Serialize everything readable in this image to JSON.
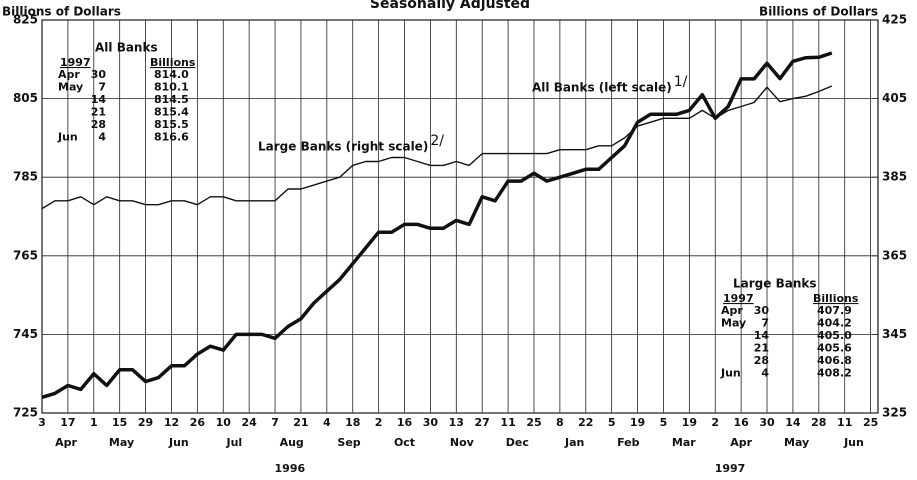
{
  "chart_data": {
    "type": "line",
    "subtitle": "Seasonally Adjusted",
    "ylabel": "Billions of Dollars",
    "y2label": "Billions of Dollars",
    "x": [
      "1996-04-03",
      "1996-04-10",
      "1996-04-17",
      "1996-04-24",
      "1996-05-01",
      "1996-05-08",
      "1996-05-15",
      "1996-05-22",
      "1996-05-29",
      "1996-06-05",
      "1996-06-12",
      "1996-06-19",
      "1996-06-26",
      "1996-07-03",
      "1996-07-10",
      "1996-07-17",
      "1996-07-24",
      "1996-07-31",
      "1996-08-07",
      "1996-08-14",
      "1996-08-21",
      "1996-08-28",
      "1996-09-04",
      "1996-09-11",
      "1996-09-18",
      "1996-09-25",
      "1996-10-02",
      "1996-10-09",
      "1996-10-16",
      "1996-10-23",
      "1996-10-30",
      "1996-11-06",
      "1996-11-13",
      "1996-11-20",
      "1996-11-27",
      "1996-12-04",
      "1996-12-11",
      "1996-12-18",
      "1996-12-25",
      "1997-01-01",
      "1997-01-08",
      "1997-01-15",
      "1997-01-22",
      "1997-01-29",
      "1997-02-05",
      "1997-02-12",
      "1997-02-19",
      "1997-02-26",
      "1997-03-05",
      "1997-03-12",
      "1997-03-19",
      "1997-03-26",
      "1997-04-02",
      "1997-04-09",
      "1997-04-16",
      "1997-04-23",
      "1997-04-30",
      "1997-05-07",
      "1997-05-14",
      "1997-05-21",
      "1997-05-28",
      "1997-06-04"
    ],
    "series": [
      {
        "name": "All Banks (left scale)",
        "note": "1/",
        "color": "#111111",
        "width": 3.5,
        "values": [
          729,
          730,
          732,
          731,
          735,
          732,
          736,
          736,
          733,
          734,
          737,
          737,
          740,
          742,
          741,
          745,
          745,
          745,
          744,
          747,
          749,
          753,
          756,
          759,
          763,
          767,
          771,
          771,
          773,
          773,
          772,
          772,
          774,
          773,
          780,
          779,
          784,
          784,
          786,
          784,
          785,
          786,
          787,
          787,
          790,
          793,
          799,
          801,
          801,
          801,
          802,
          806,
          800,
          803,
          810,
          810,
          814.0,
          810.1,
          814.5,
          815.4,
          815.5,
          816.6
        ]
      },
      {
        "name": "Large Banks (right scale)",
        "note": "2/",
        "color": "#111111",
        "width": 1.4,
        "axis": "y2",
        "values": [
          377,
          379,
          379,
          380,
          378,
          380,
          379,
          379,
          378,
          378,
          379,
          379,
          378,
          380,
          380,
          379,
          379,
          379,
          379,
          382,
          382,
          383,
          384,
          385,
          388,
          389,
          389,
          390,
          390,
          389,
          388,
          388,
          389,
          388,
          391,
          391,
          391,
          391,
          391,
          391,
          392,
          392,
          392,
          393,
          393,
          395,
          398,
          399,
          400,
          400,
          400,
          402,
          400,
          402,
          403,
          404,
          407.9,
          404.2,
          405.0,
          405.6,
          406.8,
          408.2
        ]
      }
    ],
    "xlim": [
      "1996-04-03",
      "1997-06-29"
    ],
    "xticks": [
      {
        "value": "1996-04-03",
        "label": "3"
      },
      {
        "value": "1996-04-17",
        "label": "17"
      },
      {
        "value": "1996-05-01",
        "label": "1"
      },
      {
        "value": "1996-05-15",
        "label": "15"
      },
      {
        "value": "1996-05-29",
        "label": "29"
      },
      {
        "value": "1996-06-12",
        "label": "12"
      },
      {
        "value": "1996-06-26",
        "label": "26"
      },
      {
        "value": "1996-07-10",
        "label": "10"
      },
      {
        "value": "1996-07-24",
        "label": "24"
      },
      {
        "value": "1996-08-07",
        "label": "7"
      },
      {
        "value": "1996-08-21",
        "label": "21"
      },
      {
        "value": "1996-09-04",
        "label": "4"
      },
      {
        "value": "1996-09-18",
        "label": "18"
      },
      {
        "value": "1996-10-02",
        "label": "2"
      },
      {
        "value": "1996-10-16",
        "label": "16"
      },
      {
        "value": "1996-10-30",
        "label": "30"
      },
      {
        "value": "1996-11-13",
        "label": "13"
      },
      {
        "value": "1996-11-27",
        "label": "27"
      },
      {
        "value": "1996-12-11",
        "label": "11"
      },
      {
        "value": "1996-12-25",
        "label": "25"
      },
      {
        "value": "1997-01-08",
        "label": "8"
      },
      {
        "value": "1997-01-22",
        "label": "22"
      },
      {
        "value": "1997-02-05",
        "label": "5"
      },
      {
        "value": "1997-02-19",
        "label": "19"
      },
      {
        "value": "1997-03-05",
        "label": "5"
      },
      {
        "value": "1997-03-19",
        "label": "19"
      },
      {
        "value": "1997-04-02",
        "label": "2"
      },
      {
        "value": "1997-04-16",
        "label": "16"
      },
      {
        "value": "1997-04-30",
        "label": "30"
      },
      {
        "value": "1997-05-14",
        "label": "14"
      },
      {
        "value": "1997-05-28",
        "label": "28"
      },
      {
        "value": "1997-06-11",
        "label": "11"
      },
      {
        "value": "1997-06-25",
        "label": "25"
      }
    ],
    "months": [
      {
        "value": "1996-04-16",
        "label": "Apr"
      },
      {
        "value": "1996-05-16",
        "label": "May"
      },
      {
        "value": "1996-06-16",
        "label": "Jun"
      },
      {
        "value": "1996-07-16",
        "label": "Jul"
      },
      {
        "value": "1996-08-16",
        "label": "Aug"
      },
      {
        "value": "1996-09-16",
        "label": "Sep"
      },
      {
        "value": "1996-10-16",
        "label": "Oct"
      },
      {
        "value": "1996-11-16",
        "label": "Nov"
      },
      {
        "value": "1996-12-16",
        "label": "Dec"
      },
      {
        "value": "1997-01-16",
        "label": "Jan"
      },
      {
        "value": "1997-02-14",
        "label": "Feb"
      },
      {
        "value": "1997-03-16",
        "label": "Mar"
      },
      {
        "value": "1997-04-16",
        "label": "Apr"
      },
      {
        "value": "1997-05-16",
        "label": "May"
      },
      {
        "value": "1997-06-16",
        "label": "Jun"
      }
    ],
    "years": [
      {
        "value": "1996-08-15",
        "label": "1996"
      },
      {
        "value": "1997-04-10",
        "label": "1997"
      }
    ],
    "ylim": [
      725,
      825
    ],
    "yticks": [
      725,
      745,
      765,
      785,
      805,
      825
    ],
    "y2lim": [
      325,
      425
    ],
    "y2ticks": [
      325,
      345,
      365,
      385,
      405,
      425
    ],
    "grid": true,
    "tables": [
      {
        "title": "All Banks",
        "header": [
          "1997",
          "Billions"
        ],
        "rows": [
          [
            "Apr",
            "30",
            "814.0"
          ],
          [
            "May",
            "7",
            "810.1"
          ],
          [
            null,
            "14",
            "814.5"
          ],
          [
            null,
            "21",
            "815.4"
          ],
          [
            null,
            "28",
            "815.5"
          ],
          [
            "Jun",
            "4",
            "816.6"
          ]
        ]
      },
      {
        "title": "Large Banks",
        "header": [
          "1997",
          "Billions"
        ],
        "rows": [
          [
            "Apr",
            "30",
            "407.9"
          ],
          [
            "May",
            "7",
            "404.2"
          ],
          [
            null,
            "14",
            "405.0"
          ],
          [
            null,
            "21",
            "405.6"
          ],
          [
            null,
            "28",
            "406.8"
          ],
          [
            "Jun",
            "4",
            "408.2"
          ]
        ]
      }
    ]
  }
}
